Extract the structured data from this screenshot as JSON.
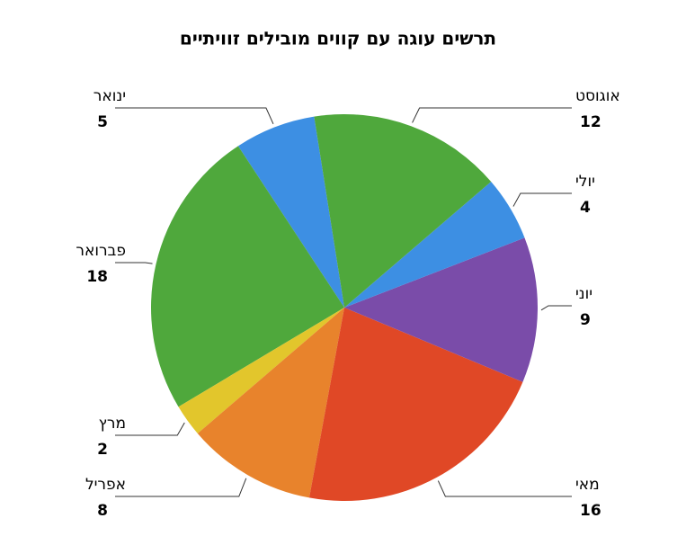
{
  "chart_data": {
    "type": "pie",
    "title": "תרשים עוגה עם קווים מובילים זוויתיים",
    "categories": [
      "ינואר",
      "פברואר",
      "מרץ",
      "אפריל",
      "מאי",
      "יוני",
      "יולי",
      "אוגוסט"
    ],
    "values": [
      5,
      18,
      2,
      8,
      16,
      9,
      4,
      12
    ],
    "colors": [
      "#3d8fe3",
      "#4fa83c",
      "#e2c62c",
      "#e8832c",
      "#e04826",
      "#7a4ca9",
      "#3d8fe3",
      "#4fa83c"
    ]
  }
}
